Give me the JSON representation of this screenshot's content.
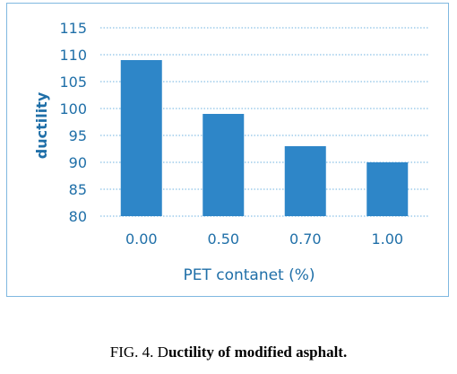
{
  "chart_data": {
    "type": "bar",
    "categories": [
      "0.00",
      "0.50",
      "0.70",
      "1.00"
    ],
    "values": [
      109,
      99,
      93,
      90
    ],
    "xlabel": "PET contanet (%)",
    "ylabel": "ductility",
    "ylim": [
      80,
      115
    ],
    "yticks": [
      "80",
      "85",
      "90",
      "95",
      "100",
      "105",
      "110",
      "115"
    ],
    "grid": true,
    "colors": {
      "bar": "#2e86c8",
      "grid": "#6fb3e0",
      "text": "#1f6fa8"
    }
  },
  "caption": {
    "prefix": "FIG. 4. D",
    "rest": "uctility of modified asphalt."
  }
}
